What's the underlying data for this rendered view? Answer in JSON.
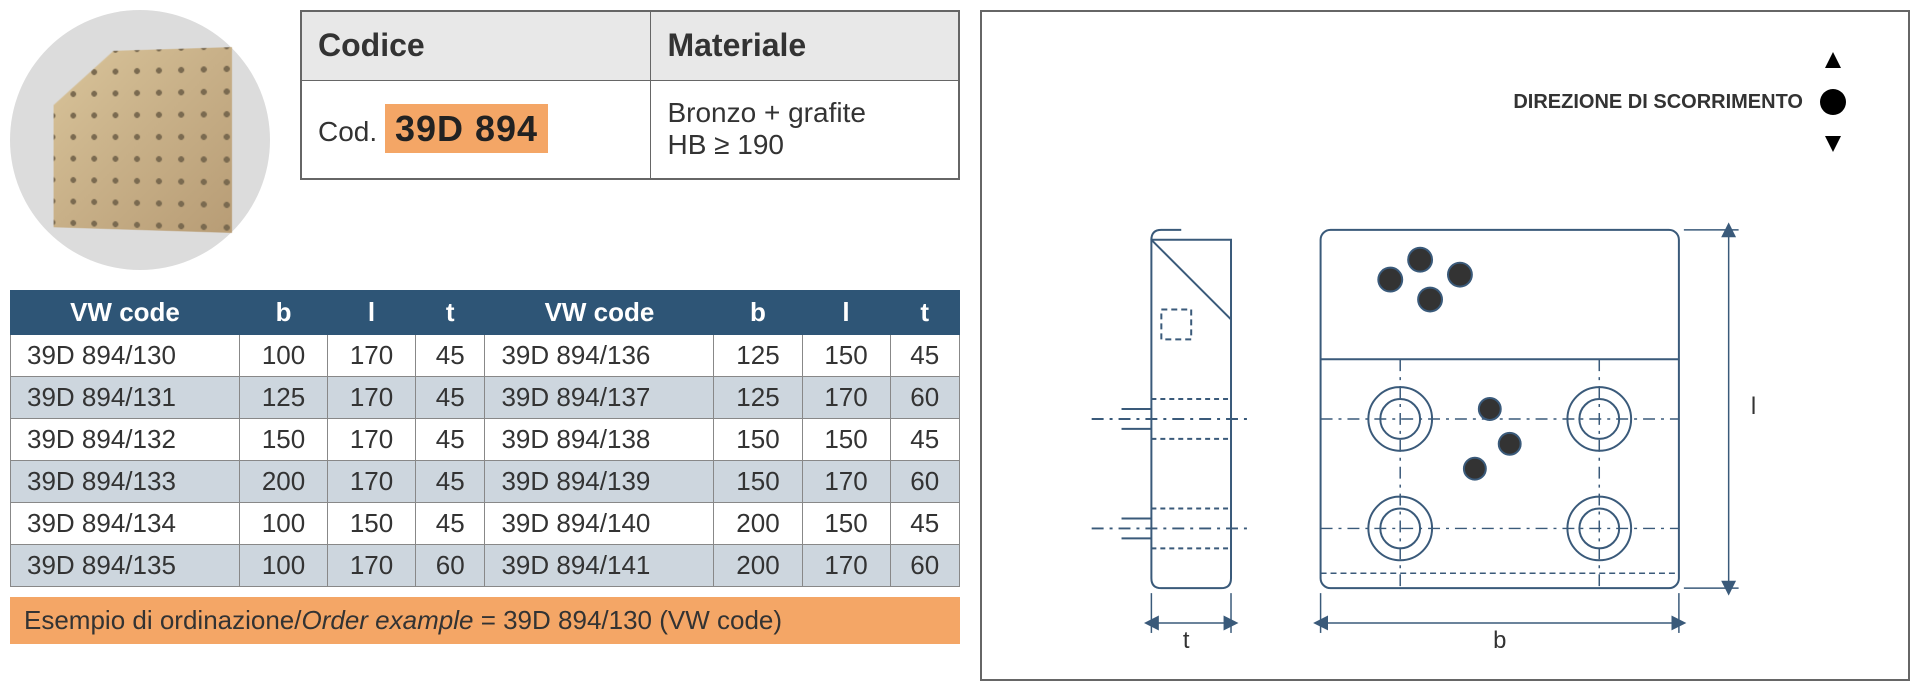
{
  "info_table": {
    "header_code": "Codice",
    "header_material": "Materiale",
    "cod_prefix": "Cod.",
    "code_value": "39D 894",
    "material_line1": "Bronzo + grafite",
    "material_line2": "HB ≥ 190"
  },
  "data_table": {
    "headers": [
      "VW code",
      "b",
      "l",
      "t",
      "VW code",
      "b",
      "l",
      "t"
    ],
    "rows": [
      [
        "39D 894/130",
        "100",
        "170",
        "45",
        "39D 894/136",
        "125",
        "150",
        "45"
      ],
      [
        "39D 894/131",
        "125",
        "170",
        "45",
        "39D 894/137",
        "125",
        "170",
        "60"
      ],
      [
        "39D 894/132",
        "150",
        "170",
        "45",
        "39D 894/138",
        "150",
        "150",
        "45"
      ],
      [
        "39D 894/133",
        "200",
        "170",
        "45",
        "39D 894/139",
        "150",
        "170",
        "60"
      ],
      [
        "39D 894/134",
        "100",
        "150",
        "45",
        "39D 894/140",
        "200",
        "150",
        "45"
      ],
      [
        "39D 894/135",
        "100",
        "170",
        "60",
        "39D 894/141",
        "200",
        "170",
        "60"
      ]
    ],
    "header_bg": "#2e5576",
    "header_color": "#ffffff",
    "odd_bg": "#ffffff",
    "even_bg": "#cdd6de"
  },
  "order_example": {
    "label_it": "Esempio di ordinazione/",
    "label_en": "Order example",
    "value": " = 39D 894/130 (VW code)",
    "bg_color": "#f4a666"
  },
  "drawing": {
    "direction_label": "DIREZIONE DI SCORRIMENTO",
    "dim_t": "t",
    "dim_b": "b",
    "dim_l": "l",
    "stroke_color": "#3a5a7a",
    "stroke_width": 2
  },
  "colors": {
    "highlight": "#f4a666",
    "table_header": "#2e5576",
    "border": "#666666",
    "circle_bg": "#dcdcdc"
  }
}
